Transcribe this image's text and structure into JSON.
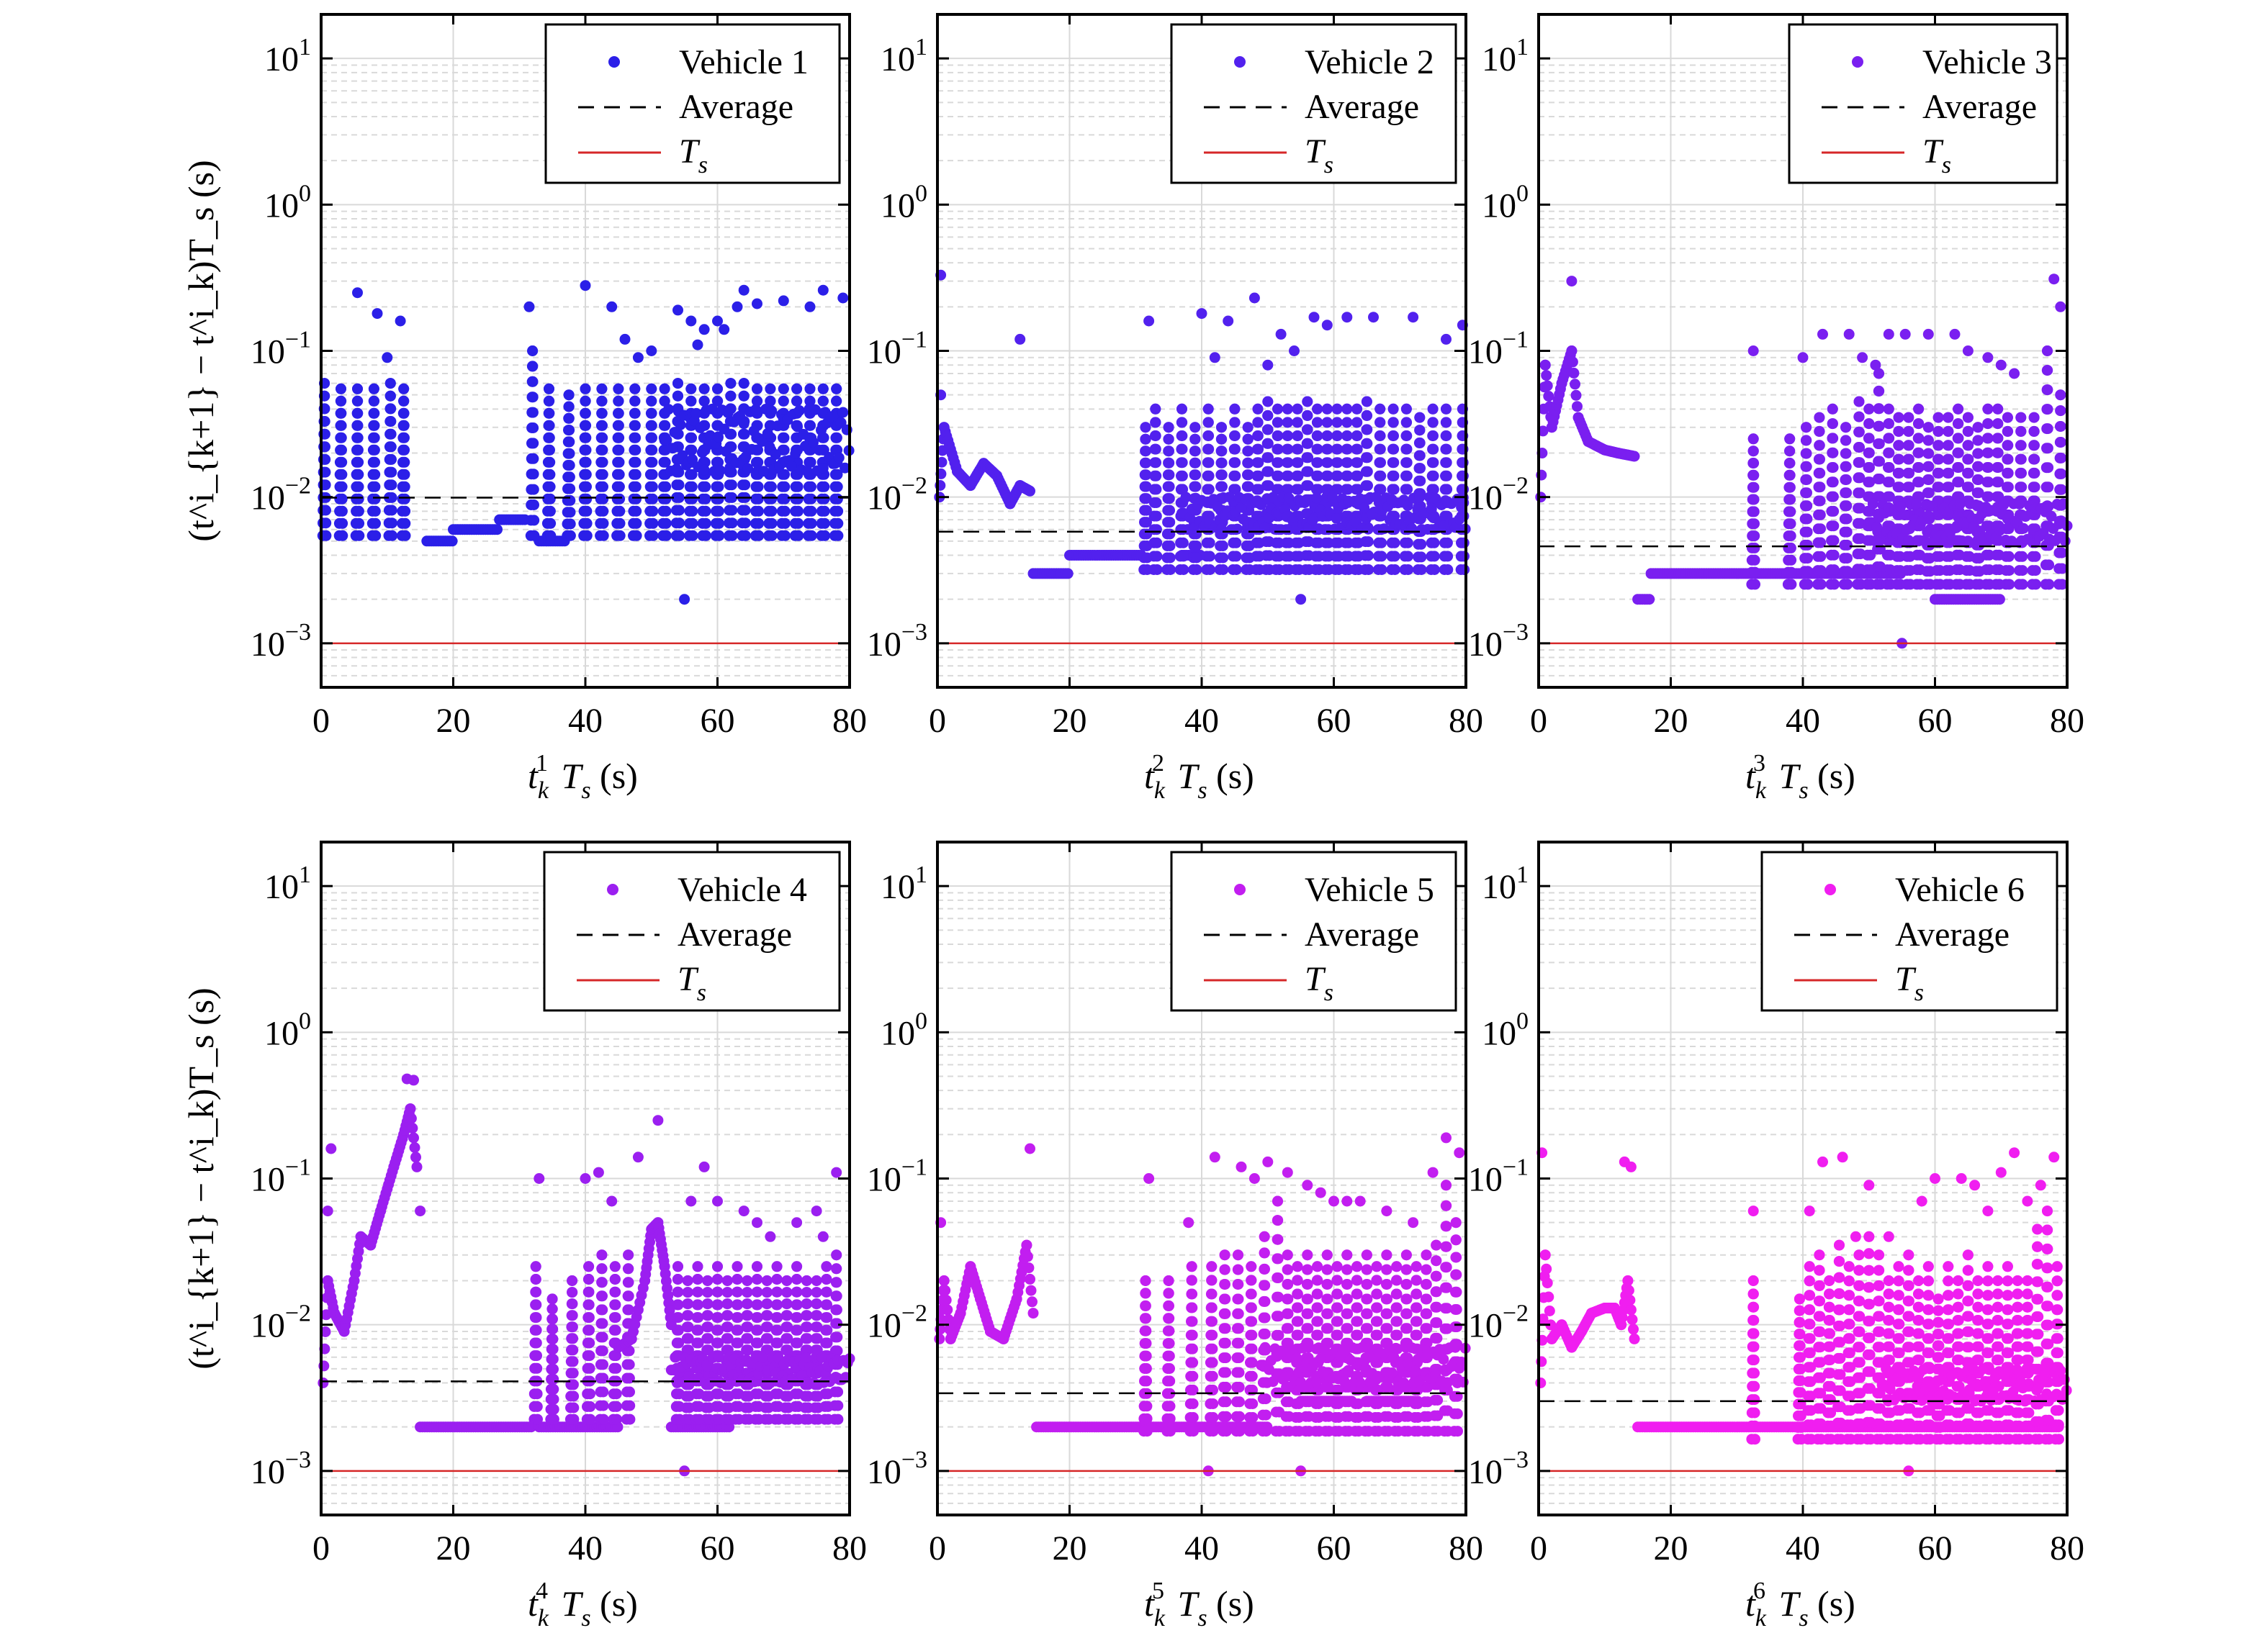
{
  "figure": {
    "ylabel": "(t^i_{k+1} − t^i_k)T_s (s)",
    "yscale": "log",
    "ylim": [
      0.0005,
      20
    ],
    "xlim": [
      0,
      80
    ],
    "x_ticks": [
      0,
      20,
      40,
      60,
      80
    ],
    "y_tick_labels": [
      {
        "base": "10",
        "exp": "1"
      },
      {
        "base": "10",
        "exp": "0"
      },
      {
        "base": "10",
        "exp": "−1"
      },
      {
        "base": "10",
        "exp": "−2"
      },
      {
        "base": "10",
        "exp": "−3"
      }
    ],
    "legend_average": "Average",
    "legend_ts": "T",
    "legend_ts_sub": "s",
    "colors": {
      "average_line": "#000000",
      "ts_line": "#d62728",
      "grid": "#d9d9d9"
    }
  },
  "chart_data": [
    {
      "type": "scatter",
      "series_name": "Vehicle 1",
      "color": "#2b1fe8",
      "xlabel_sup": "1",
      "average": 0.0099,
      "ts": 0.001,
      "floor_segments": [
        [
          16,
          20,
          0.005
        ],
        [
          20,
          27,
          0.006
        ],
        [
          27,
          31,
          0.007
        ],
        [
          33,
          37,
          0.005
        ]
      ],
      "spike_x": [
        0.5,
        3,
        5.5,
        8,
        10.5,
        12.5,
        32,
        34.5,
        37.5,
        40,
        42.5,
        45,
        47.5,
        50,
        52,
        54,
        56,
        58,
        60,
        62,
        64,
        66,
        68,
        70,
        72,
        74,
        76,
        78
      ],
      "spike_top": [
        0.06,
        0.055,
        0.055,
        0.055,
        0.06,
        0.055,
        0.1,
        0.055,
        0.05,
        0.055,
        0.055,
        0.055,
        0.055,
        0.055,
        0.055,
        0.06,
        0.055,
        0.055,
        0.055,
        0.06,
        0.06,
        0.055,
        0.055,
        0.055,
        0.055,
        0.055,
        0.055,
        0.055
      ],
      "outliers": [
        [
          5.5,
          0.25
        ],
        [
          8.5,
          0.18
        ],
        [
          10,
          0.09
        ],
        [
          12,
          0.16
        ],
        [
          31.5,
          0.2
        ],
        [
          40,
          0.28
        ],
        [
          44,
          0.2
        ],
        [
          46,
          0.12
        ],
        [
          48,
          0.09
        ],
        [
          50,
          0.1
        ],
        [
          54,
          0.19
        ],
        [
          55,
          0.002
        ],
        [
          56,
          0.16
        ],
        [
          57,
          0.11
        ],
        [
          58,
          0.14
        ],
        [
          60,
          0.16
        ],
        [
          61,
          0.14
        ],
        [
          63,
          0.2
        ],
        [
          64,
          0.26
        ],
        [
          66,
          0.21
        ],
        [
          70,
          0.22
        ],
        [
          74,
          0.2
        ],
        [
          76,
          0.26
        ],
        [
          79,
          0.23
        ]
      ],
      "band": [
        52,
        80,
        0.015,
        0.04
      ]
    },
    {
      "type": "scatter",
      "series_name": "Vehicle 2",
      "color": "#5221ee",
      "xlabel_sup": "2",
      "average": 0.0058,
      "ts": 0.001,
      "floor_segments": [
        [
          14.5,
          20,
          0.003
        ],
        [
          20,
          31,
          0.004
        ],
        [
          37,
          40,
          0.004
        ]
      ],
      "spike_x": [
        31.5,
        33,
        35,
        37,
        39,
        41,
        43,
        45,
        47,
        48.5,
        50,
        51.5,
        53,
        54.5,
        56,
        57.5,
        59,
        60.5,
        62,
        63.5,
        65,
        67,
        69,
        71,
        73,
        75,
        77,
        79.5
      ],
      "spike_top": [
        0.03,
        0.04,
        0.03,
        0.04,
        0.03,
        0.04,
        0.03,
        0.04,
        0.03,
        0.04,
        0.045,
        0.04,
        0.04,
        0.04,
        0.045,
        0.04,
        0.04,
        0.04,
        0.04,
        0.04,
        0.045,
        0.04,
        0.04,
        0.04,
        0.035,
        0.04,
        0.04,
        0.04
      ],
      "outliers": [
        [
          0.5,
          0.33
        ],
        [
          0.5,
          0.05
        ],
        [
          12.5,
          0.12
        ],
        [
          32,
          0.16
        ],
        [
          40,
          0.18
        ],
        [
          42,
          0.09
        ],
        [
          44,
          0.16
        ],
        [
          48,
          0.23
        ],
        [
          50,
          0.08
        ],
        [
          52,
          0.13
        ],
        [
          54,
          0.1
        ],
        [
          55,
          0.002
        ],
        [
          57,
          0.17
        ],
        [
          59,
          0.15
        ],
        [
          62,
          0.17
        ],
        [
          66,
          0.17
        ],
        [
          72,
          0.17
        ],
        [
          77,
          0.12
        ],
        [
          79.5,
          0.15
        ]
      ],
      "early_curve": [
        [
          0.3,
          0.01
        ],
        [
          1,
          0.03
        ],
        [
          3,
          0.015
        ],
        [
          5,
          0.012
        ],
        [
          7,
          0.017
        ],
        [
          9,
          0.014
        ],
        [
          11,
          0.009
        ],
        [
          12.5,
          0.012
        ],
        [
          14,
          0.011
        ]
      ],
      "band": [
        37,
        80,
        0.006,
        0.01
      ]
    },
    {
      "type": "scatter",
      "series_name": "Vehicle 3",
      "color": "#7a1ff0",
      "xlabel_sup": "3",
      "average": 0.0046,
      "ts": 0.001,
      "floor_segments": [
        [
          15,
          17,
          0.002
        ],
        [
          17,
          33,
          0.003
        ],
        [
          33,
          38,
          0.003
        ],
        [
          38,
          55,
          0.003
        ],
        [
          60,
          70,
          0.002
        ]
      ],
      "spike_x": [
        32.5,
        38,
        40.5,
        42.5,
        44.5,
        46.5,
        48.5,
        50,
        51.5,
        53,
        54.5,
        56,
        57.5,
        59,
        60.5,
        62,
        63.5,
        65,
        66.5,
        68,
        69.5,
        71,
        73,
        75,
        77,
        79
      ],
      "spike_top": [
        0.025,
        0.025,
        0.03,
        0.035,
        0.04,
        0.03,
        0.045,
        0.04,
        0.07,
        0.04,
        0.035,
        0.035,
        0.04,
        0.03,
        0.035,
        0.035,
        0.04,
        0.035,
        0.03,
        0.04,
        0.04,
        0.035,
        0.035,
        0.035,
        0.1,
        0.05
      ],
      "outliers": [
        [
          5,
          0.3
        ],
        [
          32.5,
          0.1
        ],
        [
          40,
          0.09
        ],
        [
          43,
          0.13
        ],
        [
          47,
          0.13
        ],
        [
          49,
          0.09
        ],
        [
          51,
          0.08
        ],
        [
          53,
          0.13
        ],
        [
          55,
          0.001
        ],
        [
          55.5,
          0.13
        ],
        [
          59,
          0.13
        ],
        [
          63,
          0.13
        ],
        [
          65,
          0.1
        ],
        [
          68,
          0.09
        ],
        [
          70,
          0.08
        ],
        [
          72,
          0.07
        ],
        [
          78,
          0.31
        ],
        [
          79,
          0.2
        ]
      ],
      "early_curve": [
        [
          0.3,
          0.01
        ],
        [
          1,
          0.08
        ],
        [
          2,
          0.03
        ],
        [
          3.5,
          0.06
        ],
        [
          5,
          0.1
        ],
        [
          6,
          0.035
        ],
        [
          7.5,
          0.024
        ],
        [
          10,
          0.021
        ],
        [
          12,
          0.02
        ],
        [
          14.5,
          0.019
        ]
      ],
      "band": [
        50,
        80,
        0.005,
        0.009
      ]
    },
    {
      "type": "scatter",
      "series_name": "Vehicle 4",
      "color": "#9b1ff0",
      "xlabel_sup": "4",
      "average": 0.0041,
      "ts": 0.001,
      "floor_segments": [
        [
          15,
          32,
          0.002
        ],
        [
          33,
          45,
          0.002
        ],
        [
          53,
          62,
          0.002
        ]
      ],
      "spike_x": [
        32.5,
        35,
        38,
        40.5,
        42.5,
        44.5,
        46.5,
        54,
        55.5,
        57,
        58.5,
        60,
        61.5,
        63,
        64.5,
        66,
        67.5,
        69,
        70.5,
        72,
        73.5,
        75,
        76.5,
        78
      ],
      "spike_top": [
        0.025,
        0.015,
        0.02,
        0.025,
        0.03,
        0.025,
        0.03,
        0.025,
        0.02,
        0.025,
        0.02,
        0.025,
        0.02,
        0.025,
        0.02,
        0.025,
        0.02,
        0.025,
        0.02,
        0.025,
        0.02,
        0.02,
        0.025,
        0.03
      ],
      "outliers": [
        [
          1,
          0.06
        ],
        [
          1.5,
          0.16
        ],
        [
          13,
          0.48
        ],
        [
          14,
          0.47
        ],
        [
          15,
          0.06
        ],
        [
          33,
          0.1
        ],
        [
          40,
          0.1
        ],
        [
          42,
          0.11
        ],
        [
          44,
          0.07
        ],
        [
          48,
          0.14
        ],
        [
          51,
          0.25
        ],
        [
          55,
          0.001
        ],
        [
          56,
          0.07
        ],
        [
          58,
          0.12
        ],
        [
          60,
          0.07
        ],
        [
          64,
          0.06
        ],
        [
          66,
          0.05
        ],
        [
          68,
          0.04
        ],
        [
          72,
          0.05
        ],
        [
          75,
          0.06
        ],
        [
          76,
          0.04
        ],
        [
          78,
          0.11
        ]
      ],
      "early_curve": [
        [
          0.3,
          0.004
        ],
        [
          1,
          0.02
        ],
        [
          2,
          0.012
        ],
        [
          3.5,
          0.009
        ],
        [
          5,
          0.02
        ],
        [
          6,
          0.04
        ],
        [
          7.5,
          0.035
        ],
        [
          9,
          0.06
        ],
        [
          11,
          0.12
        ],
        [
          12.5,
          0.2
        ],
        [
          13.5,
          0.3
        ],
        [
          14.5,
          0.12
        ]
      ],
      "mid_curve": [
        [
          45,
          0.007
        ],
        [
          47,
          0.008
        ],
        [
          49,
          0.02
        ],
        [
          50,
          0.045
        ],
        [
          51,
          0.05
        ],
        [
          52,
          0.025
        ],
        [
          53,
          0.01
        ]
      ],
      "band": [
        53,
        80,
        0.004,
        0.006
      ]
    },
    {
      "type": "scatter",
      "series_name": "Vehicle 5",
      "color": "#c21ef0",
      "xlabel_sup": "5",
      "average": 0.0034,
      "ts": 0.001,
      "floor_segments": [
        [
          15,
          31,
          0.002
        ],
        [
          31,
          50,
          0.002
        ],
        [
          55,
          63,
          0.003
        ],
        [
          65,
          73,
          0.003
        ]
      ],
      "spike_x": [
        31.5,
        35,
        38.5,
        41.5,
        43.5,
        45.5,
        47.5,
        49.5,
        51.5,
        53,
        54.5,
        56,
        57.5,
        59,
        60.5,
        62,
        63.5,
        65,
        66.5,
        68,
        69.5,
        71,
        72.5,
        74,
        75.5,
        77,
        78.5
      ],
      "spike_top": [
        0.02,
        0.02,
        0.025,
        0.025,
        0.03,
        0.03,
        0.025,
        0.04,
        0.07,
        0.03,
        0.025,
        0.03,
        0.025,
        0.03,
        0.025,
        0.03,
        0.025,
        0.03,
        0.025,
        0.03,
        0.025,
        0.03,
        0.025,
        0.03,
        0.035,
        0.09,
        0.05
      ],
      "outliers": [
        [
          0.5,
          0.05
        ],
        [
          14,
          0.16
        ],
        [
          32,
          0.1
        ],
        [
          38,
          0.05
        ],
        [
          41,
          0.001
        ],
        [
          42,
          0.14
        ],
        [
          46,
          0.12
        ],
        [
          48,
          0.1
        ],
        [
          50,
          0.13
        ],
        [
          53,
          0.11
        ],
        [
          55,
          0.001
        ],
        [
          56,
          0.09
        ],
        [
          58,
          0.08
        ],
        [
          60,
          0.07
        ],
        [
          62,
          0.07
        ],
        [
          64,
          0.07
        ],
        [
          68,
          0.06
        ],
        [
          72,
          0.05
        ],
        [
          75,
          0.11
        ],
        [
          77,
          0.19
        ],
        [
          79,
          0.15
        ]
      ],
      "early_curve": [
        [
          0.3,
          0.008
        ],
        [
          1,
          0.02
        ],
        [
          2,
          0.008
        ],
        [
          3.5,
          0.012
        ],
        [
          5,
          0.025
        ],
        [
          6.5,
          0.015
        ],
        [
          8,
          0.009
        ],
        [
          10,
          0.008
        ],
        [
          12,
          0.015
        ],
        [
          13.5,
          0.035
        ],
        [
          14.5,
          0.012
        ]
      ],
      "band": [
        49,
        80,
        0.004,
        0.007
      ]
    },
    {
      "type": "scatter",
      "series_name": "Vehicle 6",
      "color": "#f01ef0",
      "xlabel_sup": "6",
      "average": 0.003,
      "ts": 0.001,
      "floor_segments": [
        [
          15,
          40,
          0.002
        ],
        [
          40,
          57,
          0.002
        ],
        [
          57,
          79,
          0.002
        ]
      ],
      "spike_x": [
        32.5,
        39.5,
        41,
        42.5,
        44,
        45.5,
        47,
        48.5,
        50,
        51.5,
        53,
        54.5,
        56,
        57.5,
        59,
        60.5,
        62,
        63.5,
        65,
        66.5,
        68,
        69.5,
        71,
        72.5,
        74,
        75.5,
        77,
        78.5
      ],
      "spike_top": [
        0.02,
        0.015,
        0.025,
        0.03,
        0.02,
        0.035,
        0.025,
        0.03,
        0.04,
        0.03,
        0.02,
        0.025,
        0.03,
        0.02,
        0.025,
        0.015,
        0.025,
        0.02,
        0.03,
        0.02,
        0.025,
        0.02,
        0.025,
        0.02,
        0.02,
        0.045,
        0.06,
        0.025
      ],
      "outliers": [
        [
          0.5,
          0.15
        ],
        [
          13,
          0.13
        ],
        [
          14,
          0.12
        ],
        [
          32.5,
          0.06
        ],
        [
          41,
          0.06
        ],
        [
          43,
          0.13
        ],
        [
          46,
          0.14
        ],
        [
          48,
          0.04
        ],
        [
          50,
          0.09
        ],
        [
          53,
          0.04
        ],
        [
          56,
          0.001
        ],
        [
          58,
          0.07
        ],
        [
          60,
          0.1
        ],
        [
          64,
          0.1
        ],
        [
          66,
          0.09
        ],
        [
          68,
          0.06
        ],
        [
          70,
          0.11
        ],
        [
          72,
          0.15
        ],
        [
          74,
          0.07
        ],
        [
          76,
          0.09
        ],
        [
          78,
          0.14
        ]
      ],
      "early_curve": [
        [
          0.3,
          0.004
        ],
        [
          1,
          0.03
        ],
        [
          2,
          0.008
        ],
        [
          3.5,
          0.01
        ],
        [
          5,
          0.007
        ],
        [
          6.5,
          0.009
        ],
        [
          8,
          0.012
        ],
        [
          10,
          0.013
        ],
        [
          11.5,
          0.013
        ],
        [
          12.5,
          0.01
        ],
        [
          13.5,
          0.02
        ],
        [
          14.5,
          0.008
        ]
      ],
      "band": [
        52,
        80,
        0.003,
        0.005
      ]
    }
  ]
}
